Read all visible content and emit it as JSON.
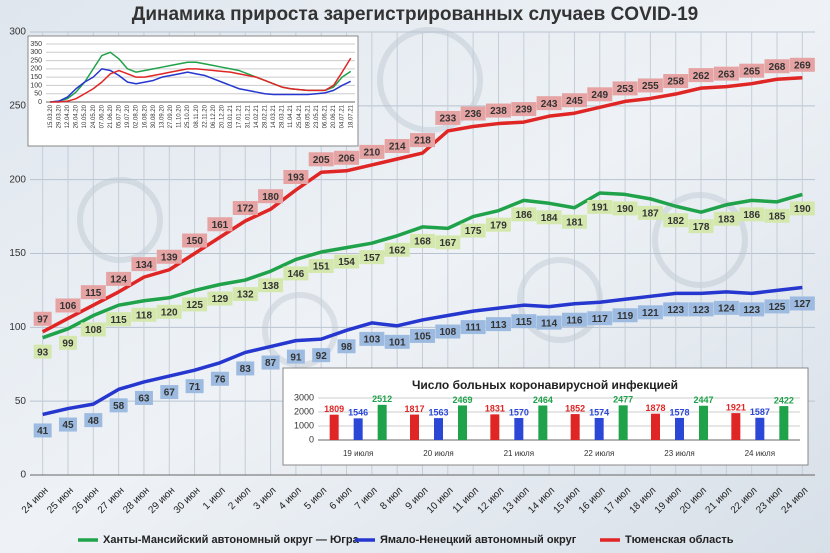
{
  "chart_data": [
    {
      "type": "line",
      "title": "Динамика прироста зарегистрированных случаев COVID-19",
      "categories": [
        "24 июн",
        "25 июн",
        "26 июн",
        "27 июн",
        "28 июн",
        "29 июн",
        "30 июн",
        "1 июл",
        "2 июл",
        "3 июл",
        "4 июл",
        "5 июл",
        "6 июл",
        "7 июл",
        "8 июл",
        "9 июл",
        "10 июл",
        "11 июл",
        "12 июл",
        "13 июл",
        "14 июл",
        "15 июл",
        "16 июл",
        "17 июл",
        "18 июл",
        "19 июл",
        "20 июл",
        "21 июл",
        "22 июл",
        "23 июл",
        "24 июл"
      ],
      "series": [
        {
          "name": "Ханты-Мансийский автономный округ — Югра",
          "color": "#1fa24a",
          "label_fill": "#d4e8ad",
          "values": [
            93,
            99,
            108,
            115,
            118,
            120,
            125,
            129,
            132,
            138,
            146,
            151,
            154,
            157,
            162,
            168,
            167,
            175,
            179,
            186,
            184,
            181,
            191,
            190,
            187,
            182,
            178,
            183,
            186,
            185,
            190
          ]
        },
        {
          "name": "Ямало-Ненецкий автономный округ",
          "color": "#2637cf",
          "label_fill": "#9dbbe0",
          "values": [
            41,
            45,
            48,
            58,
            63,
            67,
            71,
            76,
            83,
            87,
            91,
            92,
            98,
            103,
            101,
            105,
            108,
            111,
            113,
            115,
            114,
            116,
            117,
            119,
            121,
            123,
            123,
            124,
            123,
            125,
            127
          ]
        },
        {
          "name": "Тюменская область",
          "color": "#e02525",
          "label_fill": "#e6a3a3",
          "values": [
            97,
            106,
            115,
            124,
            134,
            139,
            150,
            161,
            172,
            180,
            193,
            205,
            206,
            210,
            214,
            218,
            233,
            236,
            238,
            239,
            243,
            245,
            249,
            253,
            255,
            258,
            262,
            263,
            265,
            268,
            269
          ]
        }
      ],
      "ylim": [
        0,
        300
      ],
      "yticks": [
        0,
        50,
        100,
        150,
        200,
        250,
        300
      ],
      "grid": true
    },
    {
      "type": "line",
      "categories": [
        "15.03.20",
        "29.03.20",
        "12.04.20",
        "26.04.20",
        "10.05.20",
        "24.05.20",
        "07.06.20",
        "21.06.20",
        "05.07.20",
        "19.07.20",
        "02.08.20",
        "16.08.20",
        "30.08.20",
        "13.09.20",
        "27.09.20",
        "11.10.20",
        "25.10.20",
        "08.11.20",
        "22.11.20",
        "06.12.20",
        "20.12.20",
        "03.01.21",
        "17.01.21",
        "31.01.21",
        "14.02.21",
        "28.02.21",
        "14.03.21",
        "28.03.21",
        "11.04.21",
        "25.04.21",
        "09.05.21",
        "23.05.21",
        "06.06.21",
        "20.06.21",
        "04.07.21",
        "18.07.21"
      ],
      "series": [
        {
          "color": "#1fa24a",
          "values": [
            0,
            5,
            20,
            60,
            120,
            200,
            280,
            300,
            260,
            200,
            180,
            190,
            200,
            210,
            220,
            230,
            240,
            240,
            230,
            220,
            210,
            200,
            190,
            170,
            150,
            130,
            110,
            90,
            80,
            75,
            70,
            70,
            70,
            90,
            150,
            185
          ]
        },
        {
          "color": "#2637cf",
          "values": [
            0,
            5,
            30,
            80,
            120,
            150,
            200,
            190,
            160,
            120,
            110,
            120,
            130,
            150,
            160,
            170,
            180,
            170,
            160,
            140,
            120,
            100,
            80,
            70,
            60,
            50,
            45,
            45,
            45,
            45,
            45,
            50,
            55,
            70,
            100,
            125
          ]
        },
        {
          "color": "#e02525",
          "values": [
            0,
            0,
            5,
            20,
            50,
            80,
            120,
            170,
            190,
            170,
            150,
            150,
            160,
            170,
            180,
            190,
            200,
            200,
            195,
            190,
            185,
            180,
            170,
            160,
            150,
            130,
            110,
            90,
            80,
            75,
            70,
            70,
            70,
            100,
            180,
            265
          ]
        }
      ],
      "ylim": [
        0,
        350
      ],
      "yticks": [
        0,
        50,
        100,
        150,
        200,
        250,
        300,
        350
      ],
      "grid": true
    },
    {
      "type": "bar",
      "title": "Число больных коронавирусной инфекцией",
      "categories": [
        "19 июля",
        "20 июля",
        "21 июля",
        "22 июля",
        "23 июля",
        "24 июля"
      ],
      "series": [
        {
          "color": "#e02525",
          "values": [
            1809,
            1817,
            1831,
            1852,
            1878,
            1921
          ]
        },
        {
          "color": "#2a47d6",
          "values": [
            1546,
            1563,
            1570,
            1574,
            1578,
            1587
          ]
        },
        {
          "color": "#1fa24a",
          "values": [
            2512,
            2469,
            2464,
            2477,
            2447,
            2422
          ]
        }
      ],
      "ylim": [
        0,
        3000
      ],
      "yticks": [
        0,
        1000,
        2000,
        3000
      ],
      "grid": true
    }
  ]
}
